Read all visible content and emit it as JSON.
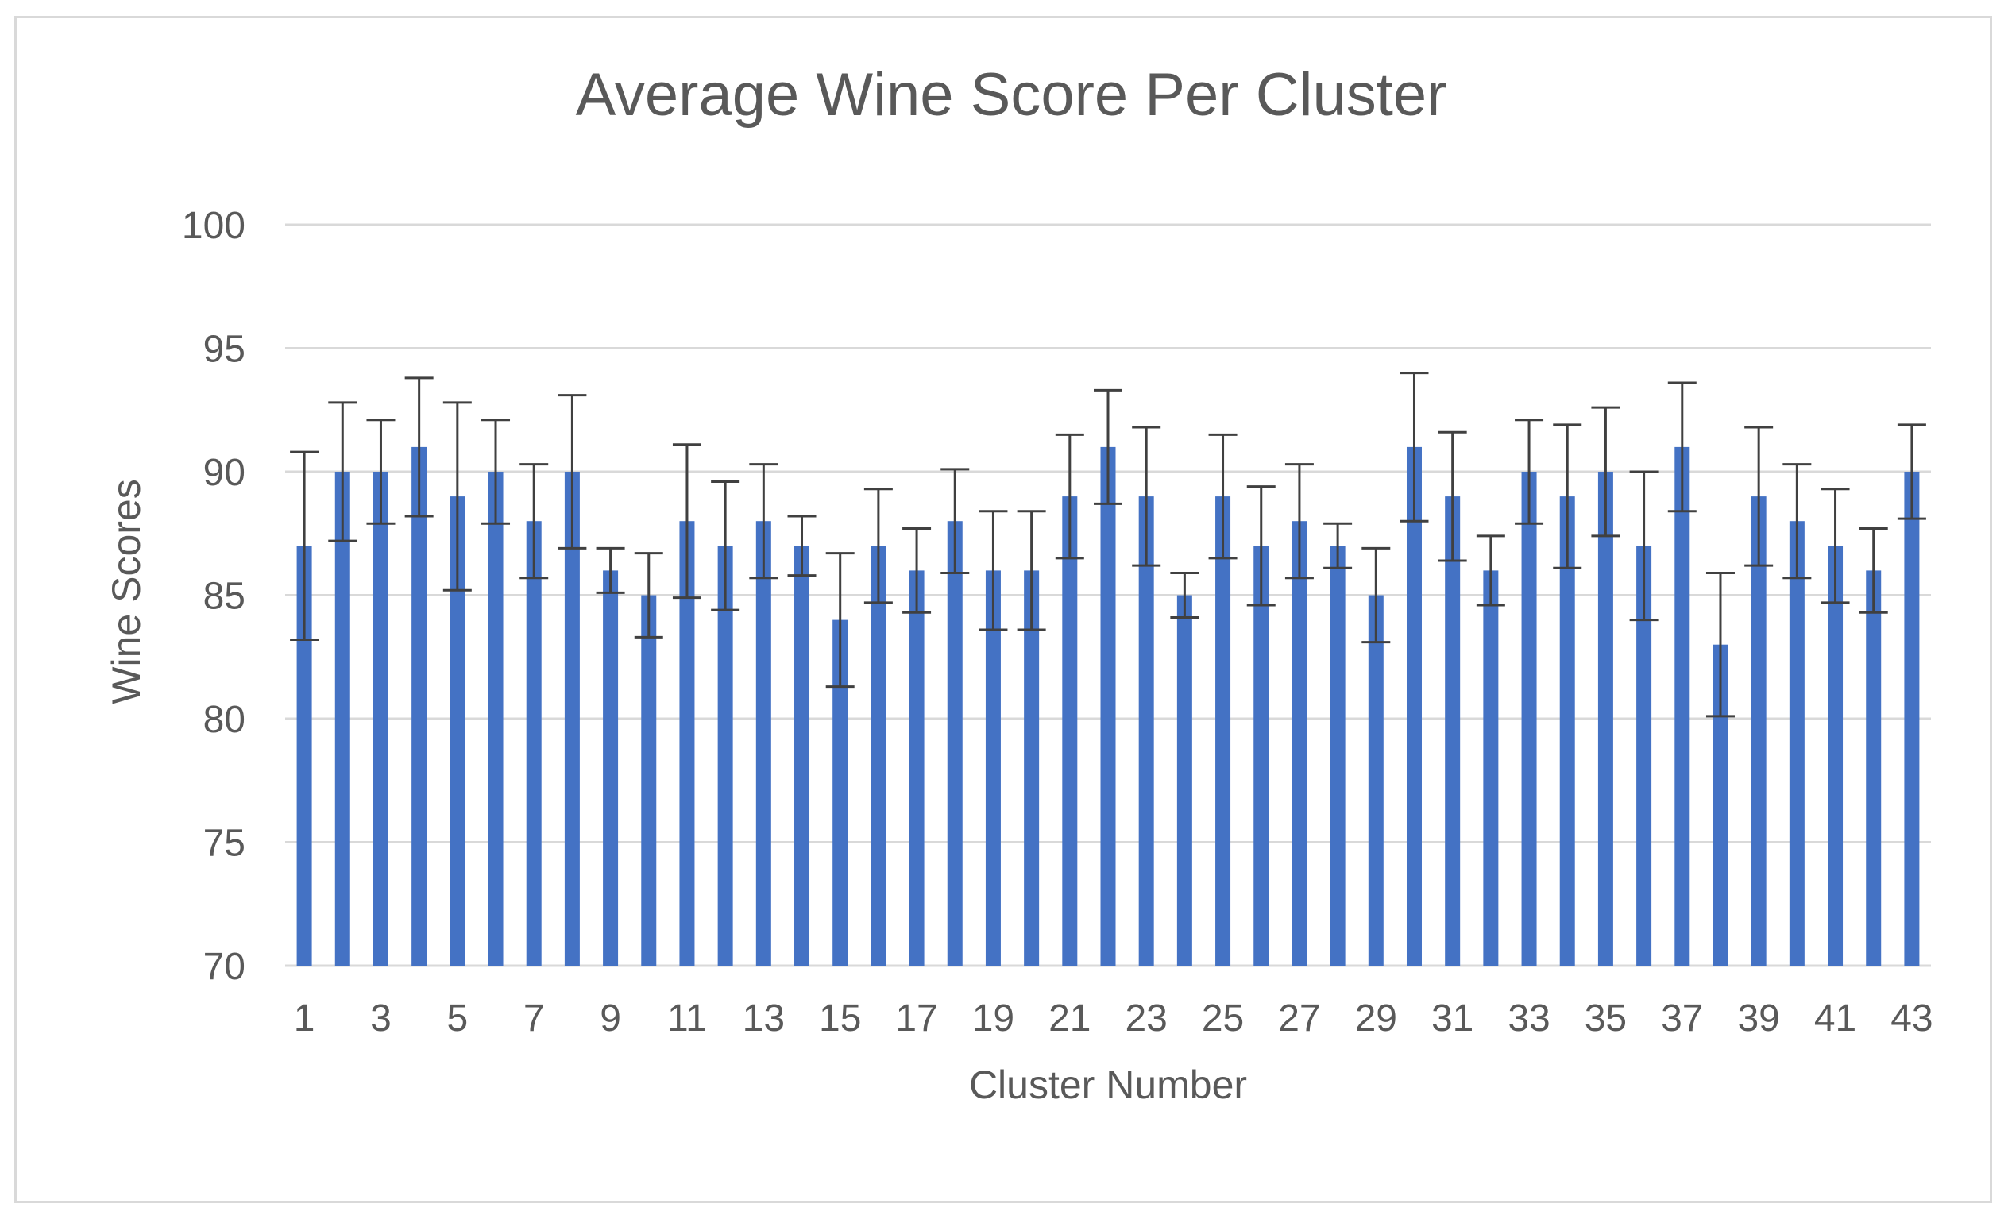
{
  "chart_data": {
    "type": "bar",
    "title": "Average Wine Score Per Cluster",
    "xlabel": "Cluster Number",
    "ylabel": "Wine Scores",
    "ylim": [
      70,
      100
    ],
    "yticks": [
      70,
      75,
      80,
      85,
      90,
      95,
      100
    ],
    "grid": true,
    "legend": "none",
    "bar_color": "#4472c4",
    "error_bar_color": "#404040",
    "gridline_color": "#d9d9d9",
    "categories": [
      "1",
      "2",
      "3",
      "4",
      "5",
      "6",
      "7",
      "8",
      "9",
      "10",
      "11",
      "12",
      "13",
      "14",
      "15",
      "16",
      "17",
      "18",
      "19",
      "20",
      "21",
      "22",
      "23",
      "24",
      "25",
      "26",
      "27",
      "28",
      "29",
      "30",
      "31",
      "32",
      "33",
      "34",
      "35",
      "36",
      "37",
      "38",
      "39",
      "40",
      "41",
      "42",
      "43"
    ],
    "visible_category_labels": [
      "1",
      "3",
      "5",
      "7",
      "9",
      "11",
      "13",
      "15",
      "17",
      "19",
      "21",
      "23",
      "25",
      "27",
      "29",
      "31",
      "33",
      "35",
      "37",
      "39",
      "41",
      "43"
    ],
    "values": [
      87,
      90,
      90,
      91,
      89,
      90,
      88,
      90,
      86,
      85,
      88,
      87,
      88,
      87,
      84,
      87,
      86,
      88,
      86,
      86,
      89,
      91,
      89,
      85,
      89,
      87,
      88,
      87,
      85,
      91,
      89,
      86,
      90,
      89,
      90,
      87,
      91,
      83,
      89,
      88,
      87,
      86,
      90
    ],
    "error_plus": [
      3.8,
      2.8,
      2.1,
      2.8,
      3.8,
      2.1,
      2.3,
      3.1,
      0.9,
      1.7,
      3.1,
      2.6,
      2.3,
      1.2,
      2.7,
      2.3,
      1.7,
      2.1,
      2.4,
      2.4,
      2.5,
      2.3,
      2.8,
      0.9,
      2.5,
      2.4,
      2.3,
      0.9,
      1.9,
      3.0,
      2.6,
      1.4,
      2.1,
      2.9,
      2.6,
      3.0,
      2.6,
      2.9,
      2.8,
      2.3,
      2.3,
      1.7,
      1.9
    ],
    "error_minus": [
      3.8,
      2.8,
      2.1,
      2.8,
      3.8,
      2.1,
      2.3,
      3.1,
      0.9,
      1.7,
      3.1,
      2.6,
      2.3,
      1.2,
      2.7,
      2.3,
      1.7,
      2.1,
      2.4,
      2.4,
      2.5,
      2.3,
      2.8,
      0.9,
      2.5,
      2.4,
      2.3,
      0.9,
      1.9,
      3.0,
      2.6,
      1.4,
      2.1,
      2.9,
      2.6,
      3.0,
      2.6,
      2.9,
      2.8,
      2.3,
      2.3,
      1.7,
      1.9
    ]
  }
}
